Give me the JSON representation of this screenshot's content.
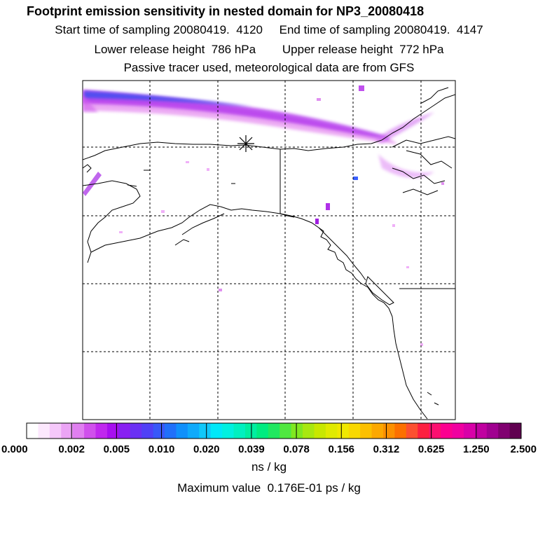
{
  "header": {
    "title": "Footprint emission sensitivity in nested domain for NP3_20080418",
    "line1": "Start time of sampling 20080419.  4120     End time of sampling 20080419.  4147",
    "line2": "Lower release height  786 hPa        Upper release height  772 hPa",
    "line3": "Passive tracer used, meteorological data are from GFS"
  },
  "colorbar": {
    "colors": [
      "#ffffff",
      "#fce8fd",
      "#f5c8fa",
      "#eba4f5",
      "#e07ff0",
      "#d050ec",
      "#c028ee",
      "#a80ff0",
      "#8820f2",
      "#6a30f4",
      "#5040f6",
      "#3858f8",
      "#2070fa",
      "#1090fb",
      "#10aafb",
      "#10c8fa",
      "#00e8f8",
      "#00f0e0",
      "#00f0c0",
      "#00eea0",
      "#00ec80",
      "#20e860",
      "#50e840",
      "#80e820",
      "#a8e810",
      "#c8e800",
      "#e0ea00",
      "#f0e800",
      "#f8d800",
      "#fcc000",
      "#fca800",
      "#fc9000",
      "#fc7000",
      "#fc5030",
      "#fc2040",
      "#fc1070",
      "#fc0090",
      "#f000a0",
      "#d800a8",
      "#c000a0",
      "#a00090",
      "#800070",
      "#600050"
    ],
    "ticks": [
      "0.000",
      "0.002",
      "0.005",
      "0.010",
      "0.020",
      "0.039",
      "0.078",
      "0.156",
      "0.312",
      "0.625",
      "1.250",
      "2.500"
    ],
    "units": "ns / kg"
  },
  "footer": {
    "max_value": "Maximum value  0.176E-01 ps / kg"
  }
}
